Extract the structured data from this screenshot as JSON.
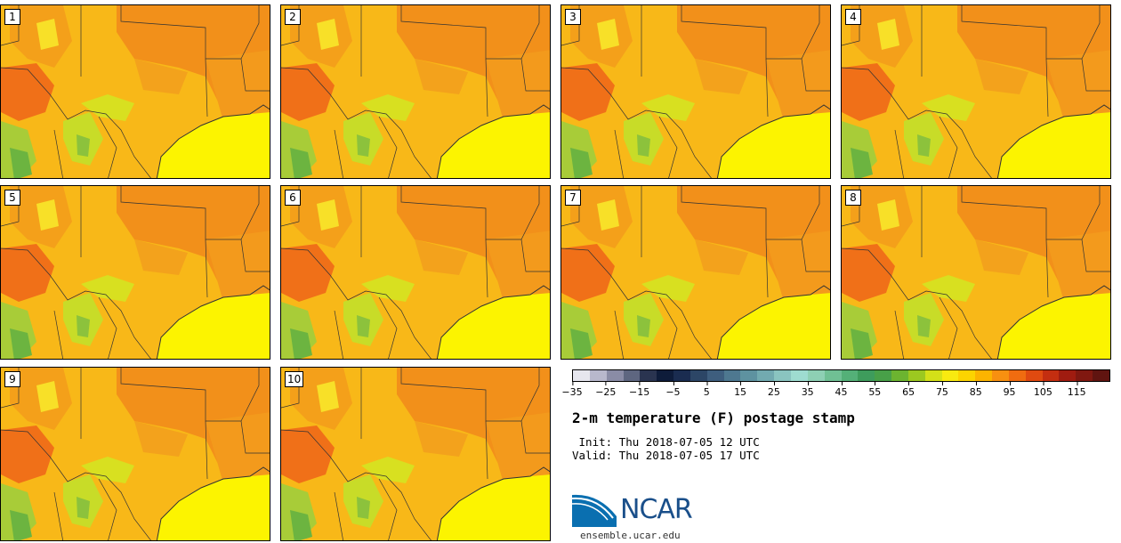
{
  "panels": [
    "1",
    "2",
    "3",
    "4",
    "5",
    "6",
    "7",
    "8",
    "9",
    "10"
  ],
  "colorbar": {
    "colors": [
      "#e6e6ee",
      "#b8b8cc",
      "#8a8ca6",
      "#5e6680",
      "#2a3450",
      "#0e1c3a",
      "#1a2c50",
      "#2c4666",
      "#3e5e7e",
      "#4e7890",
      "#5e92a0",
      "#72aab0",
      "#8ac4c0",
      "#9edcd0",
      "#8ed0b4",
      "#70c094",
      "#54b078",
      "#3e9c5c",
      "#48a048",
      "#6cb430",
      "#9cc820",
      "#d4e018",
      "#f8ea10",
      "#fcd400",
      "#fcb400",
      "#f89010",
      "#f06c10",
      "#e04a10",
      "#c42e10",
      "#a01c10",
      "#801810",
      "#601410"
    ],
    "tick_labels": [
      "−35",
      "−25",
      "−15",
      "−5",
      "5",
      "15",
      "25",
      "35",
      "45",
      "55",
      "65",
      "75",
      "85",
      "95",
      "105",
      "115"
    ]
  },
  "title": "2-m temperature (F) postage stamp",
  "init": " Init: Thu 2018-07-05 12 UTC",
  "valid": "Valid: Thu 2018-07-05 17 UTC",
  "logo_text": "NCAR",
  "site": "ensemble.ucar.edu"
}
